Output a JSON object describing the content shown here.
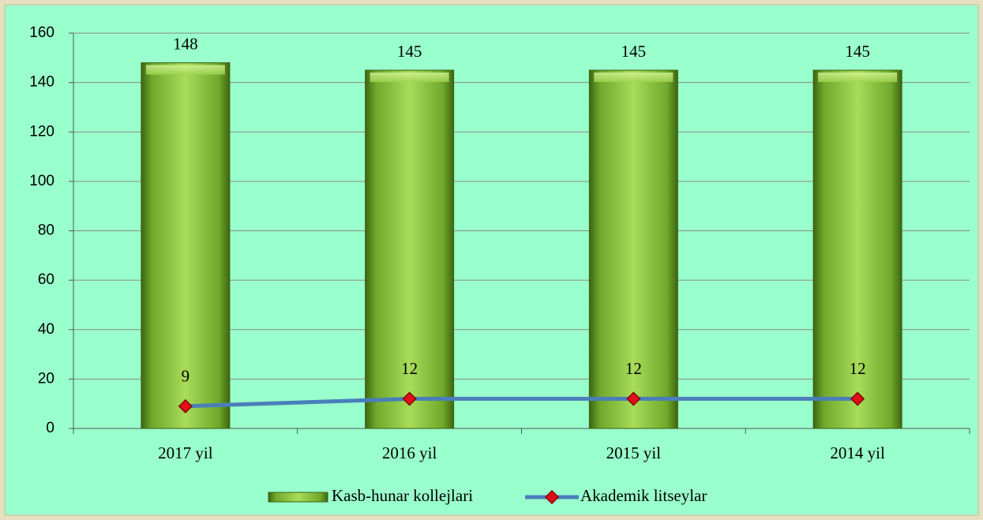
{
  "chart_data": {
    "type": "bar",
    "categories": [
      "2017 yil",
      "2016 yil",
      "2015 yil",
      "2014 yil"
    ],
    "series": [
      {
        "name": "Kasb-hunar kollejlari",
        "type": "bar",
        "color": "#8fc43c",
        "values": [
          148,
          145,
          145,
          145
        ]
      },
      {
        "name": "Akademik litseylar",
        "type": "line",
        "color": "#4a7ebb",
        "marker_color": "#e0101a",
        "values": [
          9,
          12,
          12,
          12
        ]
      }
    ],
    "ylim": [
      0,
      160
    ],
    "yticks": [
      0,
      20,
      40,
      60,
      80,
      100,
      120,
      140,
      160
    ],
    "grid": true,
    "legend": "bottom"
  }
}
